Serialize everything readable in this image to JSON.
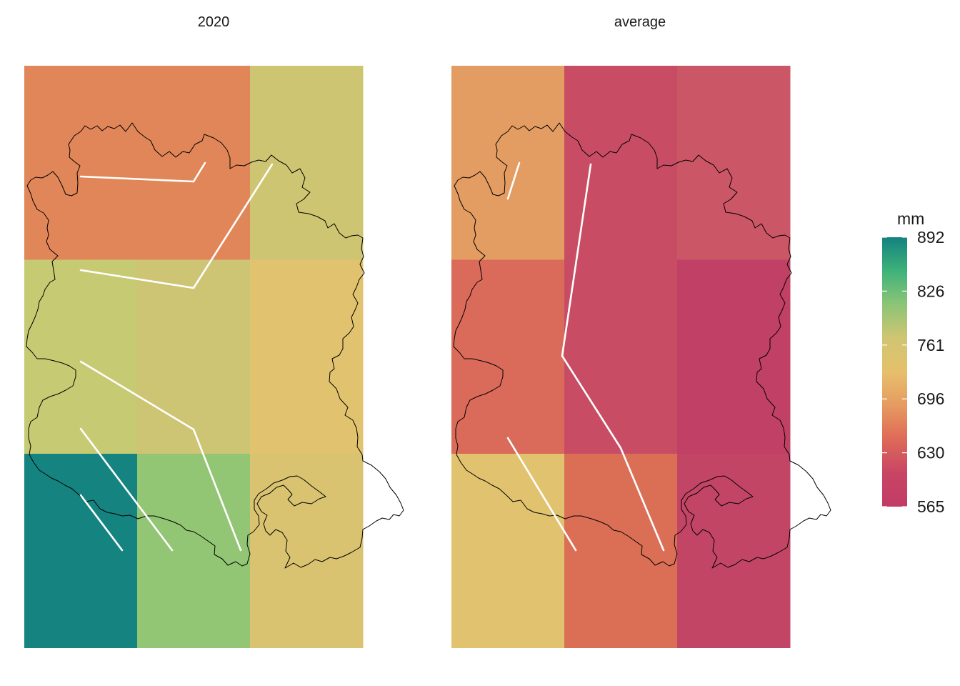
{
  "map": {
    "legend": {
      "title": "mm",
      "ticks": [
        "892",
        "826",
        "761",
        "696",
        "630",
        "565"
      ],
      "colors": [
        "#138280",
        "#3eb27a",
        "#8cc576",
        "#d0c572",
        "#e6c06c",
        "#e69a60",
        "#de6a58",
        "#c84565",
        "#c23c66"
      ]
    },
    "panels": [
      {
        "title": "2020",
        "grid_colors": [
          [
            "#e08659",
            "#e08659",
            "#cdc572"
          ],
          [
            "#c6ca73",
            "#cdc474",
            "#e1c26e"
          ],
          [
            "#15837f",
            "#92c574",
            "#d9c371"
          ]
        ],
        "grid_values_mm": [
          [
            662,
            662,
            745
          ],
          [
            755,
            745,
            712
          ],
          [
            892,
            790,
            725
          ]
        ]
      },
      {
        "title": "average",
        "grid_colors": [
          [
            "#e39c61",
            "#c84d64",
            "#cb5665"
          ],
          [
            "#da6a5a",
            "#c84d64",
            "#c14065"
          ],
          [
            "#e1c26e",
            "#db6f56",
            "#c34565"
          ]
        ],
        "grid_values_mm": [
          [
            655,
            585,
            590
          ],
          [
            615,
            585,
            570
          ],
          [
            710,
            620,
            572
          ]
        ]
      }
    ]
  }
}
